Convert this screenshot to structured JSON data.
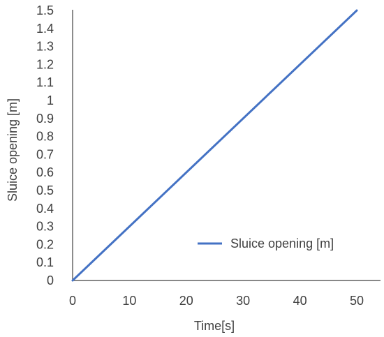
{
  "chart_data": {
    "type": "line",
    "xlabel": "Time[s]",
    "ylabel": "Sluice opening [m]",
    "xlim": [
      0,
      50
    ],
    "ylim": [
      0,
      1.5
    ],
    "x_ticks": [
      "0",
      "10",
      "20",
      "30",
      "40",
      "50"
    ],
    "y_ticks": [
      "0",
      "0.1",
      "0.2",
      "0.3",
      "0.4",
      "0.5",
      "0.6",
      "0.7",
      "0.8",
      "0.9",
      "1",
      "1.1",
      "1.2",
      "1.3",
      "1.4",
      "1.5"
    ],
    "grid": false,
    "legend_position": "bottom-right",
    "series": [
      {
        "name": "Sluice opening [m]",
        "color": "#4472c4",
        "x": [
          0,
          50
        ],
        "y": [
          0,
          1.5
        ]
      }
    ]
  }
}
